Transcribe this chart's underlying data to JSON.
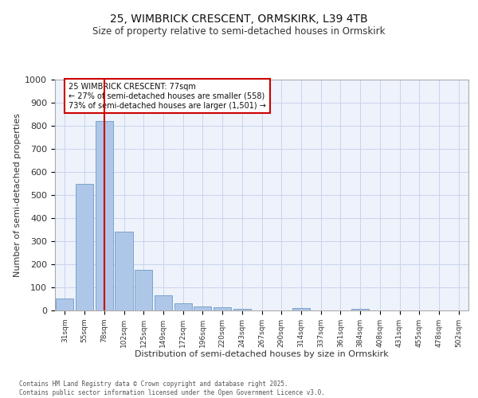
{
  "title1": "25, WIMBRICK CRESCENT, ORMSKIRK, L39 4TB",
  "title2": "Size of property relative to semi-detached houses in Ormskirk",
  "xlabel": "Distribution of semi-detached houses by size in Ormskirk",
  "ylabel": "Number of semi-detached properties",
  "categories": [
    "31sqm",
    "55sqm",
    "78sqm",
    "102sqm",
    "125sqm",
    "149sqm",
    "172sqm",
    "196sqm",
    "220sqm",
    "243sqm",
    "267sqm",
    "290sqm",
    "314sqm",
    "337sqm",
    "361sqm",
    "384sqm",
    "408sqm",
    "431sqm",
    "455sqm",
    "478sqm",
    "502sqm"
  ],
  "values": [
    52,
    550,
    820,
    342,
    175,
    65,
    30,
    18,
    14,
    8,
    0,
    0,
    10,
    0,
    0,
    8,
    0,
    0,
    0,
    0,
    0
  ],
  "bar_color": "#aec6e8",
  "bar_edge_color": "#5a8fc0",
  "highlight_index": 2,
  "highlight_line_color": "#cc0000",
  "annotation_text": "25 WIMBRICK CRESCENT: 77sqm\n← 27% of semi-detached houses are smaller (558)\n73% of semi-detached houses are larger (1,501) →",
  "annotation_box_color": "#cc0000",
  "ylim": [
    0,
    1000
  ],
  "yticks": [
    0,
    100,
    200,
    300,
    400,
    500,
    600,
    700,
    800,
    900,
    1000
  ],
  "footer1": "Contains HM Land Registry data © Crown copyright and database right 2025.",
  "footer2": "Contains public sector information licensed under the Open Government Licence v3.0.",
  "bg_color": "#eef2fb",
  "grid_color": "#c8d4ee"
}
